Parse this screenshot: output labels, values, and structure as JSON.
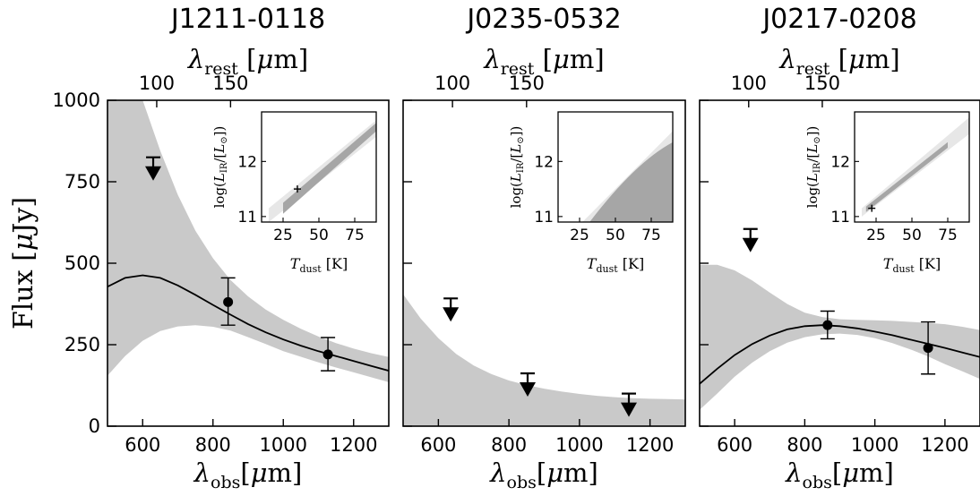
{
  "figure": {
    "y_axis_label": "Flux [μJy]",
    "x_axis_label": "λobs[μm]",
    "top_axis_label": "λrest [μm]"
  },
  "chart_data": [
    {
      "type": "line",
      "title": "J1211-0118",
      "xlabel": "λobs[μm]",
      "ylabel": "Flux [μJy]",
      "top_xlabel": "λrest [μm]",
      "xlim": [
        500,
        1300
      ],
      "ylim": [
        0,
        1000
      ],
      "x_ticks": [
        600,
        800,
        1000,
        1200
      ],
      "y_ticks": [
        0,
        250,
        500,
        750,
        1000
      ],
      "top_ticks": [
        100,
        150
      ],
      "top_tick_obs": [
        640,
        850
      ],
      "model_curve": {
        "x": [
          500,
          550,
          600,
          650,
          700,
          750,
          800,
          850,
          900,
          950,
          1000,
          1050,
          1100,
          1150,
          1200,
          1250,
          1300
        ],
        "y": [
          428,
          455,
          463,
          455,
          432,
          403,
          372,
          342,
          313,
          288,
          266,
          247,
          230,
          215,
          200,
          185,
          170
        ]
      },
      "uncertainty_band": {
        "x": [
          500,
          550,
          600,
          650,
          700,
          750,
          800,
          850,
          900,
          950,
          1000,
          1050,
          1100,
          1150,
          1200,
          1250,
          1300
        ],
        "lower": [
          155,
          215,
          262,
          292,
          306,
          310,
          305,
          293,
          273,
          252,
          230,
          213,
          196,
          180,
          165,
          150,
          135
        ],
        "upper": [
          1000,
          1000,
          1000,
          845,
          710,
          600,
          515,
          448,
          398,
          358,
          326,
          299,
          275,
          255,
          238,
          224,
          212
        ]
      },
      "detections": [
        {
          "x": 843,
          "y": 381,
          "err_low": 310,
          "err_high": 455
        },
        {
          "x": 1127,
          "y": 220,
          "err_low": 170,
          "err_high": 272
        }
      ],
      "upper_limits": [
        {
          "x": 630,
          "y": 825
        }
      ],
      "inset": {
        "xlabel": "Tdust [K]",
        "ylabel": "log(LIR/[L⊙])",
        "xlim": [
          10,
          90
        ],
        "ylim": [
          10.9,
          12.9
        ],
        "x_ticks": [
          25,
          50,
          75
        ],
        "y_ticks": [
          11,
          12
        ],
        "outer_band": {
          "x": [
            15,
            90
          ],
          "lower": [
            10.9,
            12.45
          ],
          "upper": [
            11.15,
            12.75
          ]
        },
        "inner_band": {
          "x": [
            25,
            90
          ],
          "lower": [
            11.05,
            12.55
          ],
          "upper": [
            11.25,
            12.7
          ]
        },
        "best_fit": {
          "x": 35,
          "y": 11.5
        }
      }
    },
    {
      "type": "line",
      "title": "J0235-0532",
      "xlabel": "λobs[μm]",
      "ylabel": "",
      "top_xlabel": "λrest [μm]",
      "xlim": [
        500,
        1300
      ],
      "ylim": [
        0,
        1000
      ],
      "x_ticks": [
        600,
        800,
        1000,
        1200
      ],
      "y_ticks": [
        0,
        250,
        500,
        750,
        1000
      ],
      "top_ticks": [
        100,
        150
      ],
      "top_tick_obs": [
        640,
        850
      ],
      "uncertainty_band": {
        "x": [
          500,
          550,
          600,
          650,
          700,
          750,
          800,
          850,
          900,
          950,
          1000,
          1050,
          1100,
          1150,
          1200,
          1250,
          1300
        ],
        "lower": [
          0,
          0,
          0,
          0,
          0,
          0,
          0,
          0,
          0,
          0,
          0,
          0,
          0,
          0,
          0,
          0,
          0
        ],
        "upper": [
          405,
          330,
          270,
          222,
          186,
          160,
          140,
          126,
          115,
          106,
          99,
          93,
          89,
          86,
          84,
          83,
          82
        ]
      },
      "detections": [],
      "upper_limits": [
        {
          "x": 635,
          "y": 392
        },
        {
          "x": 853,
          "y": 162
        },
        {
          "x": 1140,
          "y": 100
        }
      ],
      "inset": {
        "xlabel": "Tdust [K]",
        "ylabel": "log(LIR/[L⊙])",
        "xlim": [
          10,
          90
        ],
        "ylim": [
          10.9,
          12.9
        ],
        "x_ticks": [
          25,
          50,
          75
        ],
        "y_ticks": [
          11,
          12
        ],
        "outer_region": {
          "x": [
            27,
            90
          ],
          "upper": [
            10.9,
            12.55
          ]
        },
        "inner_region": {
          "x": [
            32,
            90
          ],
          "upper": [
            10.9,
            12.35
          ]
        }
      }
    },
    {
      "type": "line",
      "title": "J0217-0208",
      "xlabel": "λobs[μm]",
      "ylabel": "",
      "top_xlabel": "λrest [μm]",
      "xlim": [
        500,
        1300
      ],
      "ylim": [
        0,
        1000
      ],
      "x_ticks": [
        600,
        800,
        1000,
        1200
      ],
      "y_ticks": [
        0,
        250,
        500,
        750,
        1000
      ],
      "top_ticks": [
        100,
        150
      ],
      "top_tick_obs": [
        640,
        850
      ],
      "model_curve": {
        "x": [
          500,
          550,
          600,
          650,
          700,
          750,
          800,
          850,
          900,
          950,
          1000,
          1050,
          1100,
          1150,
          1200,
          1250,
          1300
        ],
        "y": [
          130,
          176,
          218,
          252,
          278,
          297,
          307,
          310,
          307,
          300,
          290,
          279,
          266,
          253,
          240,
          226,
          212
        ]
      },
      "uncertainty_band": {
        "x": [
          500,
          550,
          600,
          650,
          700,
          750,
          800,
          850,
          900,
          950,
          1000,
          1050,
          1100,
          1150,
          1200,
          1250,
          1300
        ],
        "lower": [
          50,
          100,
          152,
          195,
          230,
          256,
          273,
          282,
          284,
          280,
          270,
          255,
          236,
          215,
          190,
          168,
          145
        ],
        "upper": [
          495,
          495,
          478,
          447,
          410,
          375,
          348,
          335,
          328,
          326,
          325,
          323,
          320,
          317,
          313,
          305,
          295
        ]
      },
      "detections": [
        {
          "x": 865,
          "y": 310,
          "err_low": 268,
          "err_high": 353
        },
        {
          "x": 1152,
          "y": 240,
          "err_low": 160,
          "err_high": 320
        }
      ],
      "upper_limits": [
        {
          "x": 645,
          "y": 605
        }
      ],
      "inset": {
        "xlabel": "Tdust [K]",
        "ylabel": "log(LIR/[L⊙])",
        "xlim": [
          10,
          90
        ],
        "ylim": [
          10.9,
          12.9
        ],
        "x_ticks": [
          25,
          50,
          75
        ],
        "y_ticks": [
          11,
          12
        ],
        "outer_band": {
          "x": [
            15,
            90
          ],
          "lower": [
            11.0,
            12.5
          ],
          "upper": [
            11.15,
            12.8
          ]
        },
        "inner_band": {
          "x": [
            18,
            75
          ],
          "lower": [
            11.08,
            12.25
          ],
          "upper": [
            11.18,
            12.35
          ]
        },
        "best_fit": {
          "x": 22,
          "y": 11.15
        }
      }
    }
  ]
}
